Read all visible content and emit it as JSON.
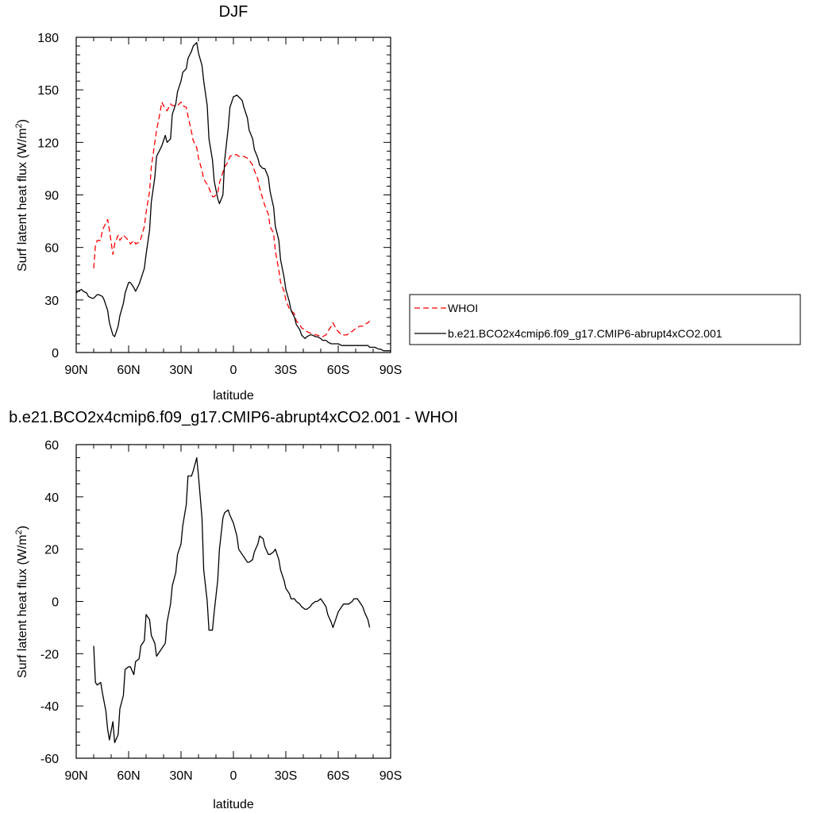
{
  "chart_data": [
    {
      "type": "line",
      "title": "DJF",
      "xlabel": "latitude",
      "ylabel": "Surf latent heat flux (W/m²)",
      "xlim": [
        -90,
        90
      ],
      "ylim": [
        0,
        180
      ],
      "x_ticks": [
        -90,
        -60,
        -30,
        0,
        30,
        60,
        90
      ],
      "x_tick_labels": [
        "90N",
        "60N",
        "30N",
        "0",
        "30S",
        "60S",
        "90S"
      ],
      "y_ticks": [
        0,
        30,
        60,
        90,
        120,
        150,
        180
      ],
      "y_tick_labels": [
        "0",
        "30",
        "60",
        "90",
        "120",
        "150",
        "180"
      ],
      "grid": false,
      "legend_position": "right",
      "series": [
        {
          "name": "WHOI",
          "color": "#ff0000",
          "dash": "dashed",
          "x": [
            -80,
            -79,
            -78,
            -76,
            -75,
            -73,
            -72,
            -71,
            -69,
            -68,
            -66,
            -65,
            -63,
            -62,
            -60,
            -59,
            -57,
            -56,
            -54,
            -53,
            -51,
            -50,
            -48,
            -47,
            -45,
            -44,
            -42,
            -41,
            -39,
            -38,
            -36,
            -35,
            -33,
            -32,
            -30,
            -29,
            -27,
            -26,
            -24,
            -23,
            -21,
            -20,
            -18,
            -17,
            -15,
            -14,
            -12,
            -11,
            -9,
            -8,
            -6,
            -5,
            -3,
            -2,
            0,
            2,
            3,
            5,
            6,
            8,
            9,
            11,
            12,
            14,
            15,
            17,
            18,
            20,
            21,
            23,
            24,
            26,
            27,
            29,
            30,
            32,
            33,
            35,
            36,
            38,
            39,
            41,
            42,
            44,
            45,
            47,
            48,
            50,
            51,
            53,
            54,
            56,
            57,
            59,
            60,
            62,
            63,
            65,
            66,
            68,
            69,
            71,
            72,
            74,
            75,
            77,
            78
          ],
          "y": [
            48,
            61,
            64,
            64,
            70,
            74,
            76,
            70,
            56,
            62,
            67,
            64,
            67,
            66,
            64,
            62,
            64,
            62,
            63,
            65,
            72,
            80,
            92,
            106,
            120,
            127,
            137,
            143,
            139,
            138,
            142,
            141,
            141,
            141,
            143,
            141,
            140,
            135,
            126,
            121,
            117,
            111,
            104,
            99,
            96,
            94,
            89,
            89,
            91,
            97,
            103,
            106,
            109,
            112,
            113,
            113,
            112,
            112,
            112,
            111,
            110,
            107,
            104,
            99,
            94,
            87,
            84,
            79,
            72,
            68,
            58,
            47,
            40,
            35,
            30,
            25,
            24,
            22,
            18,
            16,
            14,
            13,
            12,
            11,
            11,
            10,
            10,
            9,
            9,
            10,
            12,
            15,
            17,
            13,
            12,
            10,
            10,
            10,
            11,
            12,
            13,
            14,
            15,
            15,
            16,
            17,
            18
          ]
        },
        {
          "name": "b.e21.BCO2x4cmip6.f09_g17.CMIP6-abrupt4xCO2.001",
          "color": "#000000",
          "dash": "solid",
          "x": [
            -90,
            -89,
            -87,
            -86,
            -84,
            -83,
            -81,
            -80,
            -78,
            -77,
            -75,
            -74,
            -72,
            -71,
            -69,
            -68,
            -66,
            -65,
            -63,
            -62,
            -60,
            -59,
            -57,
            -56,
            -54,
            -53,
            -51,
            -50,
            -48,
            -47,
            -45,
            -44,
            -42,
            -41,
            -39,
            -38,
            -36,
            -35,
            -33,
            -32,
            -30,
            -29,
            -27,
            -26,
            -24,
            -23,
            -21,
            -20,
            -18,
            -17,
            -15,
            -14,
            -12,
            -11,
            -9,
            -8,
            -6,
            -5,
            -3,
            -2,
            0,
            2,
            3,
            5,
            6,
            8,
            9,
            11,
            12,
            14,
            15,
            17,
            18,
            20,
            21,
            23,
            24,
            26,
            27,
            29,
            30,
            32,
            33,
            35,
            36,
            38,
            39,
            41,
            42,
            44,
            45,
            47,
            48,
            50,
            51,
            53,
            54,
            56,
            57,
            59,
            60,
            62,
            63,
            65,
            66,
            68,
            69,
            71,
            72,
            74,
            75,
            77,
            78,
            80,
            81,
            83,
            84,
            86,
            87,
            89,
            90
          ],
          "y": [
            34,
            35,
            36,
            35,
            34,
            32,
            31,
            31,
            33,
            33,
            32,
            30,
            24,
            17,
            10,
            9,
            15,
            21,
            28,
            34,
            40,
            40,
            37,
            35,
            39,
            42,
            48,
            56,
            70,
            86,
            100,
            112,
            116,
            118,
            124,
            120,
            122,
            136,
            142,
            149,
            155,
            160,
            162,
            168,
            172,
            175,
            177,
            171,
            164,
            155,
            141,
            122,
            110,
            98,
            88,
            85,
            90,
            110,
            128,
            140,
            146,
            147,
            146,
            144,
            140,
            134,
            127,
            122,
            116,
            111,
            107,
            105,
            105,
            100,
            92,
            83,
            72,
            64,
            53,
            43,
            36,
            29,
            24,
            20,
            16,
            13,
            10,
            8,
            9,
            10,
            10,
            9,
            9,
            8,
            7,
            7,
            6,
            5,
            5,
            5,
            5,
            4,
            4,
            4,
            4,
            4,
            4,
            4,
            4,
            4,
            4,
            4,
            3,
            3,
            3,
            2,
            2,
            1,
            1,
            1,
            1
          ]
        }
      ]
    },
    {
      "type": "line",
      "title": "b.e21.BCO2x4cmip6.f09_g17.CMIP6-abrupt4xCO2.001 - WHOI",
      "xlabel": "latitude",
      "ylabel": "Surf latent heat flux (W/m²)",
      "xlim": [
        -90,
        90
      ],
      "ylim": [
        -60,
        60
      ],
      "x_ticks": [
        -90,
        -60,
        -30,
        0,
        30,
        60,
        90
      ],
      "x_tick_labels": [
        "90N",
        "60N",
        "30N",
        "0",
        "30S",
        "60S",
        "90S"
      ],
      "y_ticks": [
        -60,
        -40,
        -20,
        0,
        20,
        40,
        60
      ],
      "y_tick_labels": [
        "-60",
        "-40",
        "-20",
        "0",
        "20",
        "40",
        "60"
      ],
      "grid": false,
      "series": [
        {
          "color": "#000000",
          "dash": "solid",
          "x": [
            -80,
            -79,
            -78,
            -76,
            -75,
            -73,
            -72,
            -71,
            -69,
            -68,
            -66,
            -65,
            -63,
            -62,
            -60,
            -59,
            -57,
            -56,
            -54,
            -53,
            -51,
            -50,
            -48,
            -47,
            -45,
            -44,
            -42,
            -41,
            -39,
            -38,
            -36,
            -35,
            -33,
            -32,
            -30,
            -29,
            -27,
            -26,
            -24,
            -23,
            -21,
            -20,
            -18,
            -17,
            -15,
            -14,
            -12,
            -11,
            -9,
            -8,
            -6,
            -5,
            -3,
            -2,
            0,
            2,
            3,
            5,
            6,
            8,
            9,
            11,
            12,
            14,
            15,
            17,
            18,
            20,
            21,
            23,
            24,
            26,
            27,
            29,
            30,
            32,
            33,
            35,
            36,
            38,
            39,
            41,
            42,
            44,
            45,
            47,
            48,
            50,
            51,
            53,
            54,
            56,
            57,
            59,
            60,
            62,
            63,
            65,
            66,
            68,
            69,
            71,
            72,
            74,
            75,
            77,
            78
          ],
          "y": [
            -17,
            -31,
            -32,
            -31,
            -35,
            -42,
            -49,
            -53,
            -46,
            -54,
            -51,
            -41,
            -36,
            -26,
            -25,
            -25,
            -28,
            -23,
            -22,
            -17,
            -15,
            -5,
            -7,
            -13,
            -16,
            -21,
            -19,
            -18,
            -16,
            -8,
            -1,
            6,
            11,
            18,
            22,
            29,
            37,
            48,
            48,
            50,
            55,
            48,
            32,
            12,
            0,
            -11,
            -11,
            -4,
            8,
            20,
            32,
            34,
            35,
            33,
            30,
            25,
            20,
            18,
            17,
            15,
            15,
            16,
            19,
            22,
            25,
            24,
            21,
            18,
            18,
            19,
            20,
            16,
            12,
            8,
            5,
            3,
            1,
            1,
            0,
            -1,
            -2,
            -3,
            -3,
            -2,
            -1,
            0,
            0,
            1,
            0,
            -2,
            -5,
            -8,
            -10,
            -6,
            -4,
            -2,
            -1,
            -1,
            -1,
            0,
            1,
            1,
            0,
            -2,
            -4,
            -7,
            -10
          ]
        }
      ]
    }
  ]
}
